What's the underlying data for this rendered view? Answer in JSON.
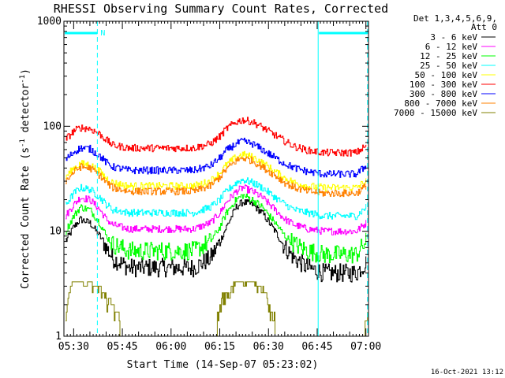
{
  "chart_data": {
    "type": "line",
    "title": "RHESSI Observing Summary Count Rates, Corrected",
    "xlabel": "Start Time (14-Sep-07 05:23:02)",
    "ylabel_main": "Corrected Count Rate (s",
    "ylabel_sup1": "-1",
    "ylabel_mid": " detector",
    "ylabel_sup2": "-1",
    "ylabel_end": ")",
    "yscale": "log",
    "ylim": [
      1,
      1000
    ],
    "yticks": [
      {
        "value": 1,
        "label": "1"
      },
      {
        "value": 10,
        "label": "10"
      },
      {
        "value": 100,
        "label": "100"
      },
      {
        "value": 1000,
        "label": "1000"
      }
    ],
    "xlim_minutes": [
      5.0,
      98.8
    ],
    "xticks": [
      {
        "minutes": 8,
        "label": "05:30"
      },
      {
        "minutes": 23,
        "label": "05:45"
      },
      {
        "minutes": 38,
        "label": "06:00"
      },
      {
        "minutes": 53,
        "label": "06:15"
      },
      {
        "minutes": 68,
        "label": "06:30"
      },
      {
        "minutes": 83,
        "label": "06:45"
      },
      {
        "minutes": 98,
        "label": "07:00"
      }
    ],
    "legend_header": [
      "Det 1,3,4,5,6,9,",
      "Att 0"
    ],
    "legend_position": "right",
    "series": [
      {
        "name": "3 - 6 keV",
        "color": "#000000",
        "x": [
          5.5,
          8,
          10,
          13,
          16,
          18,
          20,
          25,
          35,
          45,
          50,
          53,
          55,
          58,
          60,
          63,
          66,
          70,
          73,
          76,
          80,
          85,
          95,
          98
        ],
        "y": [
          8,
          11,
          13,
          12,
          9,
          7,
          5.5,
          4.5,
          4.5,
          4.5,
          5.5,
          8,
          11,
          17,
          19,
          18,
          15,
          10,
          7,
          5.5,
          4.5,
          4,
          4,
          5
        ]
      },
      {
        "name": "6 - 12 keV",
        "color": "#ff00ff",
        "x": [
          5.5,
          8,
          10,
          13,
          16,
          18,
          20,
          25,
          35,
          45,
          50,
          53,
          55,
          58,
          60,
          63,
          66,
          70,
          73,
          76,
          80,
          85,
          95,
          98
        ],
        "y": [
          14,
          18,
          21,
          20,
          16,
          13,
          11.5,
          10.5,
          10.5,
          10.5,
          12,
          15,
          19,
          24,
          26,
          24,
          21,
          16,
          13,
          11.5,
          10.5,
          10,
          10,
          12
        ]
      },
      {
        "name": "12 - 25 keV",
        "color": "#00ff00",
        "x": [
          5.5,
          8,
          10,
          13,
          16,
          18,
          20,
          25,
          35,
          45,
          50,
          53,
          55,
          58,
          60,
          63,
          66,
          70,
          73,
          76,
          80,
          85,
          95,
          98
        ],
        "y": [
          10,
          14,
          17,
          16,
          12,
          9,
          7.5,
          6.5,
          6.5,
          6.5,
          8,
          11,
          15,
          20,
          22,
          20,
          17,
          12,
          9,
          7.5,
          6.5,
          6,
          6,
          8
        ]
      },
      {
        "name": "25 - 50 keV",
        "color": "#00ffff",
        "x": [
          5.5,
          8,
          10,
          13,
          16,
          18,
          20,
          25,
          35,
          45,
          50,
          53,
          55,
          58,
          60,
          63,
          66,
          70,
          73,
          76,
          80,
          85,
          95,
          98
        ],
        "y": [
          18,
          23,
          26,
          25,
          21,
          18,
          16,
          15,
          15,
          15,
          17,
          20,
          24,
          29,
          31,
          29,
          26,
          21,
          18,
          16,
          15,
          14,
          14,
          17
        ]
      },
      {
        "name": "50 - 100 keV",
        "color": "#ffff00",
        "x": [
          5.5,
          8,
          10,
          13,
          16,
          18,
          20,
          25,
          35,
          45,
          50,
          53,
          55,
          58,
          60,
          63,
          66,
          70,
          73,
          76,
          80,
          85,
          95,
          98
        ],
        "y": [
          33,
          40,
          44,
          43,
          37,
          32,
          29,
          27,
          27,
          27,
          30,
          36,
          43,
          51,
          54,
          51,
          45,
          37,
          32,
          29,
          27,
          26,
          26,
          30
        ]
      },
      {
        "name": "100 - 300 keV",
        "color": "#ff0000",
        "x": [
          5.5,
          8,
          10,
          13,
          16,
          18,
          20,
          25,
          35,
          45,
          50,
          53,
          55,
          58,
          60,
          63,
          66,
          70,
          73,
          76,
          80,
          85,
          95,
          98
        ],
        "y": [
          75,
          90,
          97,
          95,
          84,
          74,
          66,
          62,
          62,
          62,
          68,
          80,
          95,
          110,
          115,
          110,
          98,
          82,
          72,
          64,
          59,
          56,
          56,
          65
        ]
      },
      {
        "name": "300 - 800 keV",
        "color": "#0000ff",
        "x": [
          5.5,
          8,
          10,
          13,
          16,
          18,
          20,
          25,
          35,
          45,
          50,
          53,
          55,
          58,
          60,
          63,
          66,
          70,
          73,
          76,
          80,
          85,
          95,
          98
        ],
        "y": [
          48,
          57,
          62,
          61,
          52,
          45,
          41,
          38,
          38,
          38,
          42,
          50,
          59,
          68,
          72,
          68,
          60,
          50,
          44,
          40,
          37,
          35,
          35,
          42
        ]
      },
      {
        "name": "800 - 7000 keV",
        "color": "#ff8000",
        "x": [
          5.5,
          8,
          10,
          13,
          16,
          18,
          20,
          25,
          35,
          45,
          50,
          53,
          55,
          58,
          60,
          63,
          66,
          70,
          73,
          76,
          80,
          85,
          95,
          98
        ],
        "y": [
          30,
          37,
          41,
          40,
          34,
          29,
          26,
          24,
          24,
          24,
          27,
          33,
          39,
          47,
          50,
          47,
          41,
          34,
          29,
          26,
          24,
          23,
          23,
          27
        ]
      },
      {
        "name": "7000 - 15000 keV",
        "color": "#808000",
        "x": [
          5.5,
          6.5,
          7.5,
          11,
          13,
          16,
          18,
          22,
          22.2,
          52,
          53,
          55,
          58,
          60,
          63,
          66,
          68,
          69.5,
          70,
          97.5,
          98.5
        ],
        "y": [
          1.5,
          2.5,
          3.3,
          3.3,
          3.2,
          3.0,
          2.2,
          1.5,
          1,
          1,
          2.1,
          2.5,
          3.2,
          3.5,
          3.2,
          2.8,
          2.0,
          1.4,
          1,
          1,
          1.3
        ]
      }
    ],
    "annotations": [
      {
        "label": "N",
        "color": "#00ffff"
      }
    ],
    "intervals": {
      "color": "#00ffff",
      "night": [
        [
          5.0,
          15.3
        ],
        [
          83.3,
          98.5
        ]
      ],
      "boundary_lines": [
        5.0,
        15.3,
        83.3,
        98.5
      ]
    },
    "timestamp": "16-Oct-2021 13:12"
  }
}
